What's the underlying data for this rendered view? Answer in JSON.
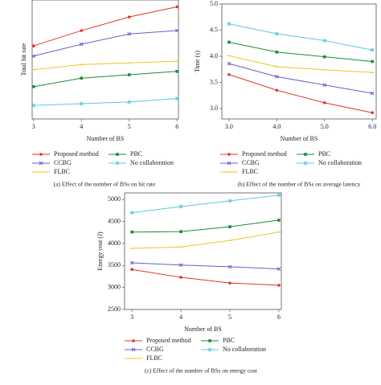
{
  "chart_data": [
    {
      "type": "line",
      "x_label": "Number of BS",
      "y_label": "Total hit rate",
      "x": [
        3,
        4,
        5,
        6
      ],
      "xlim": [
        2.97,
        6.03
      ],
      "xticks": [
        3,
        4,
        5,
        6
      ],
      "ylim": [
        0.2,
        0.9
      ],
      "caption": "(a) Effect of the number of BSs on hit rate",
      "series": [
        {
          "name": "Proposed method",
          "color": "#e2342b",
          "values": [
            0.63,
            0.72,
            0.8,
            0.86
          ]
        },
        {
          "name": "PBC",
          "color": "#1c8a3c",
          "values": [
            0.39,
            0.44,
            0.46,
            0.48
          ]
        },
        {
          "name": "CCBG",
          "color": "#6a5fc9",
          "values": [
            0.57,
            0.64,
            0.7,
            0.72
          ]
        },
        {
          "name": "No collaboration",
          "color": "#5cc8e2",
          "values": [
            0.28,
            0.29,
            0.3,
            0.32
          ]
        },
        {
          "name": "FLBC",
          "color": "#e8c91c",
          "values": [
            0.49,
            0.52,
            0.53,
            0.54
          ]
        }
      ]
    },
    {
      "type": "line",
      "x_label": "Number of BS",
      "y_label": "Time (s)",
      "x": [
        3,
        4,
        5,
        6
      ],
      "xlim": [
        2.85,
        6.08
      ],
      "xticks": [
        {
          "value": 3,
          "label": "3.0"
        },
        {
          "value": 4,
          "label": "4.0"
        },
        {
          "value": 5,
          "label": "5.0"
        },
        {
          "value": 6,
          "label": "6.0"
        }
      ],
      "ylim": [
        2.8,
        5.0
      ],
      "yticks": [
        {
          "value": 3,
          "label": "3.0"
        },
        3.5,
        {
          "value": 4,
          "label": "4.0"
        },
        4.5,
        {
          "value": 5,
          "label": "5.0"
        }
      ],
      "caption": "(b) Effect of the number of BSs on average latency",
      "series": [
        {
          "name": "Proposed method",
          "color": "#e2342b",
          "values": [
            3.65,
            3.35,
            3.11,
            2.92
          ]
        },
        {
          "name": "PBC",
          "color": "#1c8a3c",
          "values": [
            4.27,
            4.08,
            3.99,
            3.9
          ]
        },
        {
          "name": "CCBG",
          "color": "#6a5fc9",
          "values": [
            3.86,
            3.61,
            3.45,
            3.29
          ]
        },
        {
          "name": "No collaboration",
          "color": "#5cc8e2",
          "values": [
            4.62,
            4.43,
            4.3,
            4.12
          ]
        },
        {
          "name": "FLBC",
          "color": "#e8c91c",
          "values": [
            4.01,
            3.8,
            3.74,
            3.69
          ]
        }
      ]
    },
    {
      "type": "line",
      "x_label": "Number of BS",
      "y_label": "Energy cost (J)",
      "x": [
        3,
        4,
        5,
        6
      ],
      "xlim": [
        2.85,
        6.05
      ],
      "xticks": [
        3,
        4,
        5,
        6
      ],
      "ylim": [
        2500,
        5150
      ],
      "yticks": [
        2500,
        3000,
        3500,
        4000,
        4500,
        5000
      ],
      "caption": "(c) Effect of the number of BSs on energy cost",
      "series": [
        {
          "name": "Proposed method",
          "color": "#e2342b",
          "values": [
            3410,
            3230,
            3100,
            3050
          ]
        },
        {
          "name": "PBC",
          "color": "#1c8a3c",
          "values": [
            4260,
            4270,
            4380,
            4530
          ]
        },
        {
          "name": "CCBG",
          "color": "#6a5fc9",
          "values": [
            3560,
            3510,
            3470,
            3420
          ]
        },
        {
          "name": "No collaboration",
          "color": "#5cc8e2",
          "values": [
            4700,
            4840,
            4970,
            5100
          ]
        },
        {
          "name": "FLBC",
          "color": "#e8c91c",
          "values": [
            3890,
            3920,
            4070,
            4260
          ]
        }
      ]
    }
  ]
}
